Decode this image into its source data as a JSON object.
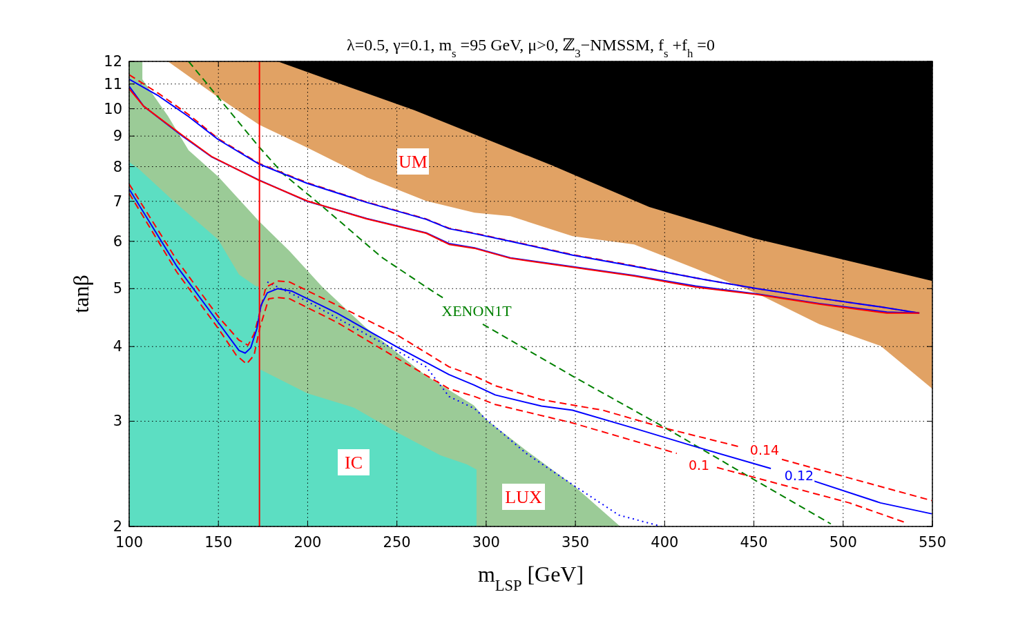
{
  "chart_data": {
    "type": "line",
    "title": "λ=0.5, γ=0.1, m$_{s}$ =95 GeV, μ>0, ℤ$_{3}$−NMSSM, f$_{s}$ +f$_{h}$ =0",
    "xlabel": "m$_{LSP}$ [GeV]",
    "ylabel": "tanβ",
    "xlim": [
      100,
      550
    ],
    "xticks": [
      100,
      150,
      200,
      250,
      300,
      350,
      400,
      450,
      500,
      550
    ],
    "ylim": [
      2,
      12
    ],
    "yticks": [
      2,
      3,
      4,
      5,
      6,
      7,
      8,
      9,
      10,
      11,
      12
    ],
    "log": "y",
    "grid": true,
    "marker": "none",
    "series": [
      {
        "type": "area",
        "color": "#000000",
        "x": [
          183.2,
          550
        ],
        "values": [
          12,
          12
        ]
      },
      {
        "type": "area",
        "color": "#e1a264",
        "x": [
          121.7,
          183.2,
          259.8,
          337.2,
          391.4,
          450.2,
          500.1,
          550
        ],
        "values": [
          12,
          12,
          9.94,
          8.03,
          6.85,
          6.07,
          5.59,
          5.15
        ]
      },
      {
        "type": "area",
        "color": "#ffffff",
        "x": [
          100,
          121.7,
          149.9,
          172.8,
          199.8,
          233.1,
          266.4,
          293.5,
          313.6,
          348.4,
          382.9,
          417.3,
          451.7,
          486.6,
          521,
          550
        ],
        "values": [
          12,
          12,
          10.45,
          9.4,
          8.61,
          7.68,
          7.01,
          6.7,
          6.61,
          6.12,
          5.93,
          5.4,
          4.91,
          4.36,
          4.01,
          3.4
        ]
      },
      {
        "type": "area",
        "color": "#9bcb97",
        "x": [
          100,
          107.4,
          107.4,
          121.7,
          133.3,
          149.9,
          172.8,
          189.8,
          208,
          232.7,
          266,
          293.1,
          300.1,
          322.5,
          348.4,
          375.1
        ],
        "values": [
          12,
          12,
          11.2,
          9.73,
          8.52,
          7.7,
          6.48,
          5.78,
          5.04,
          4.3,
          3.58,
          3.19,
          3.02,
          2.68,
          2.35,
          2
        ]
      },
      {
        "type": "area",
        "color": "#5cdec2",
        "x": [
          100,
          105,
          124.8,
          149.9,
          161.5,
          171.2,
          172.8,
          172.8,
          199.8,
          226.1,
          249.4,
          274.5,
          289.2,
          294.6,
          294.6
        ],
        "values": [
          8.14,
          7.95,
          7.01,
          6.04,
          5.28,
          5.04,
          5.04,
          3.67,
          3.34,
          3.16,
          2.88,
          2.63,
          2.54,
          2.49,
          2
        ]
      },
      {
        "color": "#008000",
        "line_style": "dashed",
        "x": [
          133.3,
          172.8,
          186.3,
          206.4,
          241.2,
          266,
          276.1,
          285,
          298.1,
          348.4,
          399.9,
          451.7,
          493.1
        ],
        "values": [
          12,
          8.63,
          7.78,
          6.94,
          5.65,
          5.04,
          4.82,
          null,
          4.36,
          3.57,
          2.93,
          2.38,
          2.02
        ]
      },
      {
        "color": "#ff0000",
        "line_style": "dashed",
        "x": [
          100,
          116.6,
          133.3,
          149.9,
          172.8,
          199.8,
          233.1,
          266.4,
          279.2,
          293.5,
          313.6,
          348.4,
          382.9,
          417.3,
          451.7,
          486.6,
          521,
          542.7
        ],
        "values": [
          11.4,
          10.6,
          9.78,
          8.91,
          8.1,
          7.52,
          6.98,
          6.54,
          6.31,
          6.19,
          6.01,
          5.7,
          5.46,
          5.21,
          5.0,
          4.82,
          4.66,
          4.55
        ]
      },
      {
        "color": "#0000ff",
        "line_style": "solid",
        "x": [
          100,
          116.6,
          133.3,
          149.9,
          172.8,
          199.8,
          233.1,
          266.4,
          279.2,
          293.5,
          313.6,
          348.4,
          382.9,
          417.3,
          451.7,
          486.6,
          521,
          542.7
        ],
        "values": [
          11.2,
          10.5,
          9.7,
          8.88,
          8.08,
          7.5,
          6.97,
          6.53,
          6.3,
          6.18,
          6.0,
          5.69,
          5.45,
          5.21,
          5.0,
          4.82,
          4.66,
          4.55
        ]
      },
      {
        "color": "#0000ff",
        "line_style": "solid",
        "x": [
          100,
          108.1,
          129.8,
          146.4,
          172.7,
          199.8,
          233.1,
          266.4,
          279.2,
          293.5,
          313.6,
          348.4,
          382.9,
          417.3,
          451.7,
          486.6,
          524.5,
          542.7
        ],
        "values": [
          10.9,
          10.1,
          9.0,
          8.3,
          7.6,
          7.0,
          6.55,
          6.2,
          5.95,
          5.85,
          5.63,
          5.44,
          5.26,
          5.05,
          4.9,
          4.72,
          4.57,
          4.55
        ]
      },
      {
        "color": "#ff0000",
        "line_style": "solid",
        "x": [
          100,
          108.1,
          129.8,
          146.4,
          172.7,
          199.8,
          233.1,
          266.4,
          279.2,
          293.5,
          313.6,
          348.4,
          382.9,
          417.3,
          451.7,
          486.6,
          524.5,
          542.7
        ],
        "values": [
          10.8,
          10.1,
          9.03,
          8.31,
          7.59,
          7.01,
          6.54,
          6.19,
          5.93,
          5.84,
          5.62,
          5.43,
          5.25,
          5.03,
          4.89,
          4.71,
          4.55,
          4.55
        ]
      },
      {
        "color": "#0000ff",
        "line_style": "dotted",
        "x": [
          177.4,
          199.8,
          233.1,
          266.4,
          279.2,
          293.5,
          300.1,
          322.5,
          348.4,
          374.3,
          398.3
        ],
        "values": [
          5.13,
          4.76,
          4.19,
          3.7,
          3.3,
          3.15,
          3.02,
          2.65,
          2.35,
          2.09,
          2
        ]
      },
      {
        "color": "#ff0000",
        "line_style": "dashed",
        "x": [
          100,
          126.7,
          149.9,
          161.5,
          166.6,
          170,
          173.1,
          176.6,
          183.2,
          189.8,
          216.5,
          249.7,
          279.2,
          293.5,
          305.1,
          331,
          365.4,
          400.3,
          441.7,
          453,
          465.7,
          503.6,
          549.6
        ],
        "values": [
          7.48,
          5.58,
          4.49,
          4.1,
          4.02,
          4.2,
          4.55,
          5.03,
          5.15,
          5.13,
          4.69,
          4.19,
          3.7,
          3.57,
          3.44,
          3.26,
          3.13,
          2.92,
          2.72,
          null,
          2.59,
          2.41,
          2.21
        ]
      },
      {
        "color": "#0000ff",
        "line_style": "solid",
        "x": [
          100,
          126.7,
          149.9,
          161.5,
          165,
          168.1,
          171.6,
          173.9,
          177.4,
          183.2,
          191.3,
          216.5,
          249.7,
          279.2,
          293.1,
          305.1,
          331,
          348.4,
          382.9,
          417.3,
          459.5,
          470,
          480.4,
          521,
          549.6
        ],
        "values": [
          7.34,
          5.45,
          4.39,
          3.94,
          3.9,
          3.98,
          4.29,
          4.69,
          4.92,
          5.0,
          4.95,
          4.55,
          4.0,
          3.59,
          3.45,
          3.32,
          3.18,
          3.13,
          2.92,
          2.72,
          2.5,
          null,
          2.4,
          2.19,
          2.1
        ]
      },
      {
        "color": "#ff0000",
        "line_style": "dashed",
        "x": [
          100,
          126.7,
          149.9,
          160,
          165.8,
          170,
          173.1,
          178.2,
          183.2,
          189.8,
          216.5,
          249.7,
          279.2,
          293.5,
          305.1,
          348.4,
          406.8,
          418,
          429.3,
          451.7,
          503.6,
          534.9
        ],
        "values": [
          7.22,
          5.33,
          4.29,
          3.87,
          3.74,
          3.87,
          4.29,
          4.81,
          4.83,
          4.81,
          4.39,
          3.83,
          3.4,
          3.3,
          3.2,
          2.98,
          2.65,
          null,
          2.51,
          2.41,
          2.19,
          2.03
        ]
      }
    ],
    "ref_lines": [
      {
        "axis": "x",
        "value": 173,
        "color": "#ff0000",
        "line_style": "solid"
      }
    ],
    "annotations": [
      "UM",
      "IC",
      "LUX",
      "XENON1T",
      "0.14",
      "0.1",
      "0.12"
    ]
  }
}
